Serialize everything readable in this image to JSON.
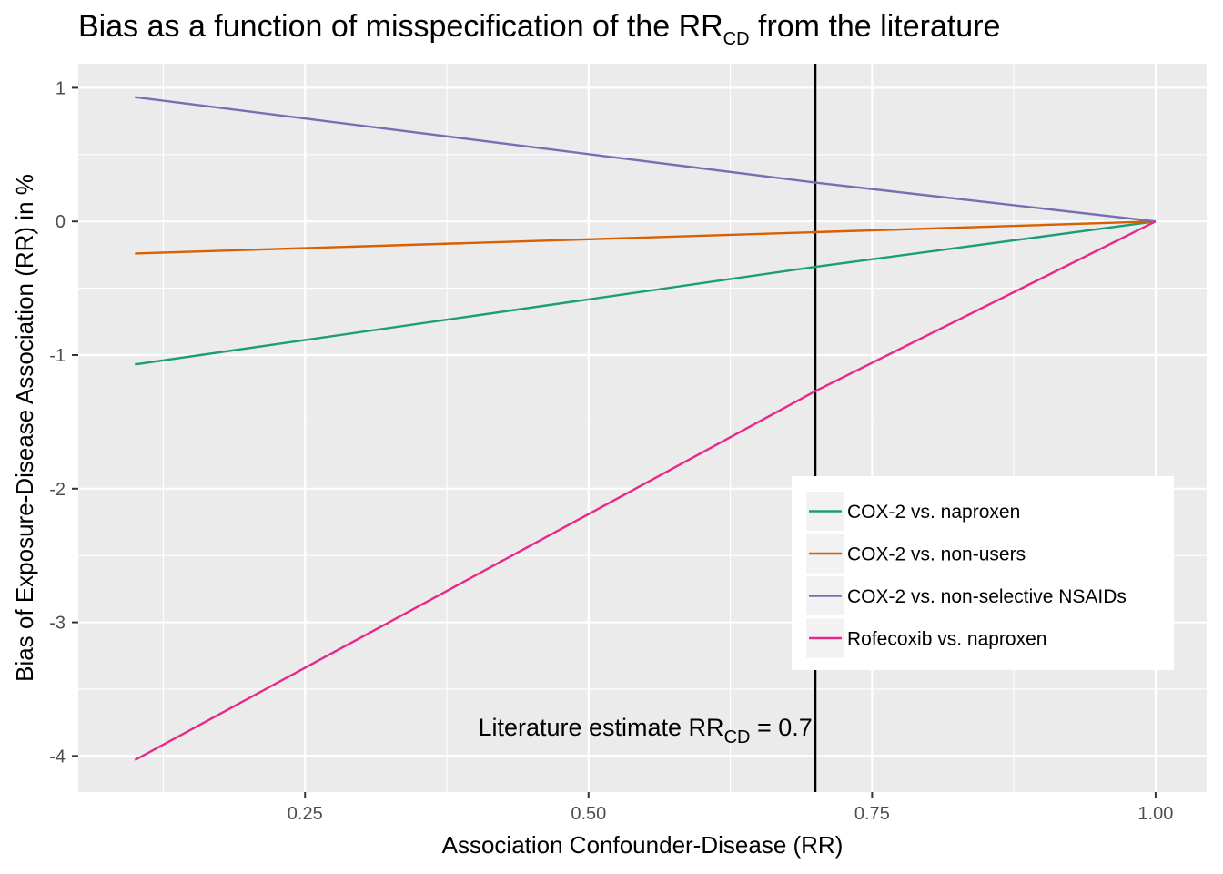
{
  "chart_data": {
    "type": "line",
    "title": {
      "main": "Bias as a function of misspecification of the RR",
      "sub": "CD",
      "tail": " from the literature"
    },
    "xlabel": "Association Confounder-Disease (RR)",
    "ylabel": "Bias of Exposure-Disease Association (RR) in %",
    "xlim": [
      0.05,
      1.045
    ],
    "ylim": [
      -4.27,
      1.18
    ],
    "x_ticks": [
      0.25,
      0.5,
      0.75,
      1.0
    ],
    "x_tick_labels": [
      "0.25",
      "0.50",
      "0.75",
      "1.00"
    ],
    "y_ticks": [
      1,
      0,
      -1,
      -2,
      -3,
      -4
    ],
    "y_tick_labels": [
      "1",
      "0",
      "-1",
      "-2",
      "-3",
      "-4"
    ],
    "grid": true,
    "legend_position": "bottom-right",
    "series": [
      {
        "name": "COX-2 vs. naproxen",
        "color": "#1b9e77",
        "x": [
          0.1,
          0.7,
          1.0
        ],
        "y": [
          -1.07,
          -0.34,
          0.0
        ]
      },
      {
        "name": "COX-2 vs. non-users",
        "color": "#d95f02",
        "x": [
          0.1,
          0.7,
          1.0
        ],
        "y": [
          -0.24,
          -0.08,
          0.0
        ]
      },
      {
        "name": "COX-2 vs. non-selective NSAIDs",
        "color": "#7570b3",
        "x": [
          0.1,
          0.7,
          1.0
        ],
        "y": [
          0.93,
          0.29,
          0.0
        ]
      },
      {
        "name": "Rofecoxib vs. naproxen",
        "color": "#e7298a",
        "x": [
          0.1,
          0.7,
          1.0
        ],
        "y": [
          -4.03,
          -1.27,
          0.0
        ]
      }
    ],
    "vline": {
      "x": 0.7,
      "color": "#000000"
    },
    "annotation": {
      "pre": "Literature estimate RR",
      "sub": "CD",
      "post": " = 0.7",
      "x": 0.55,
      "y": -3.78
    }
  }
}
